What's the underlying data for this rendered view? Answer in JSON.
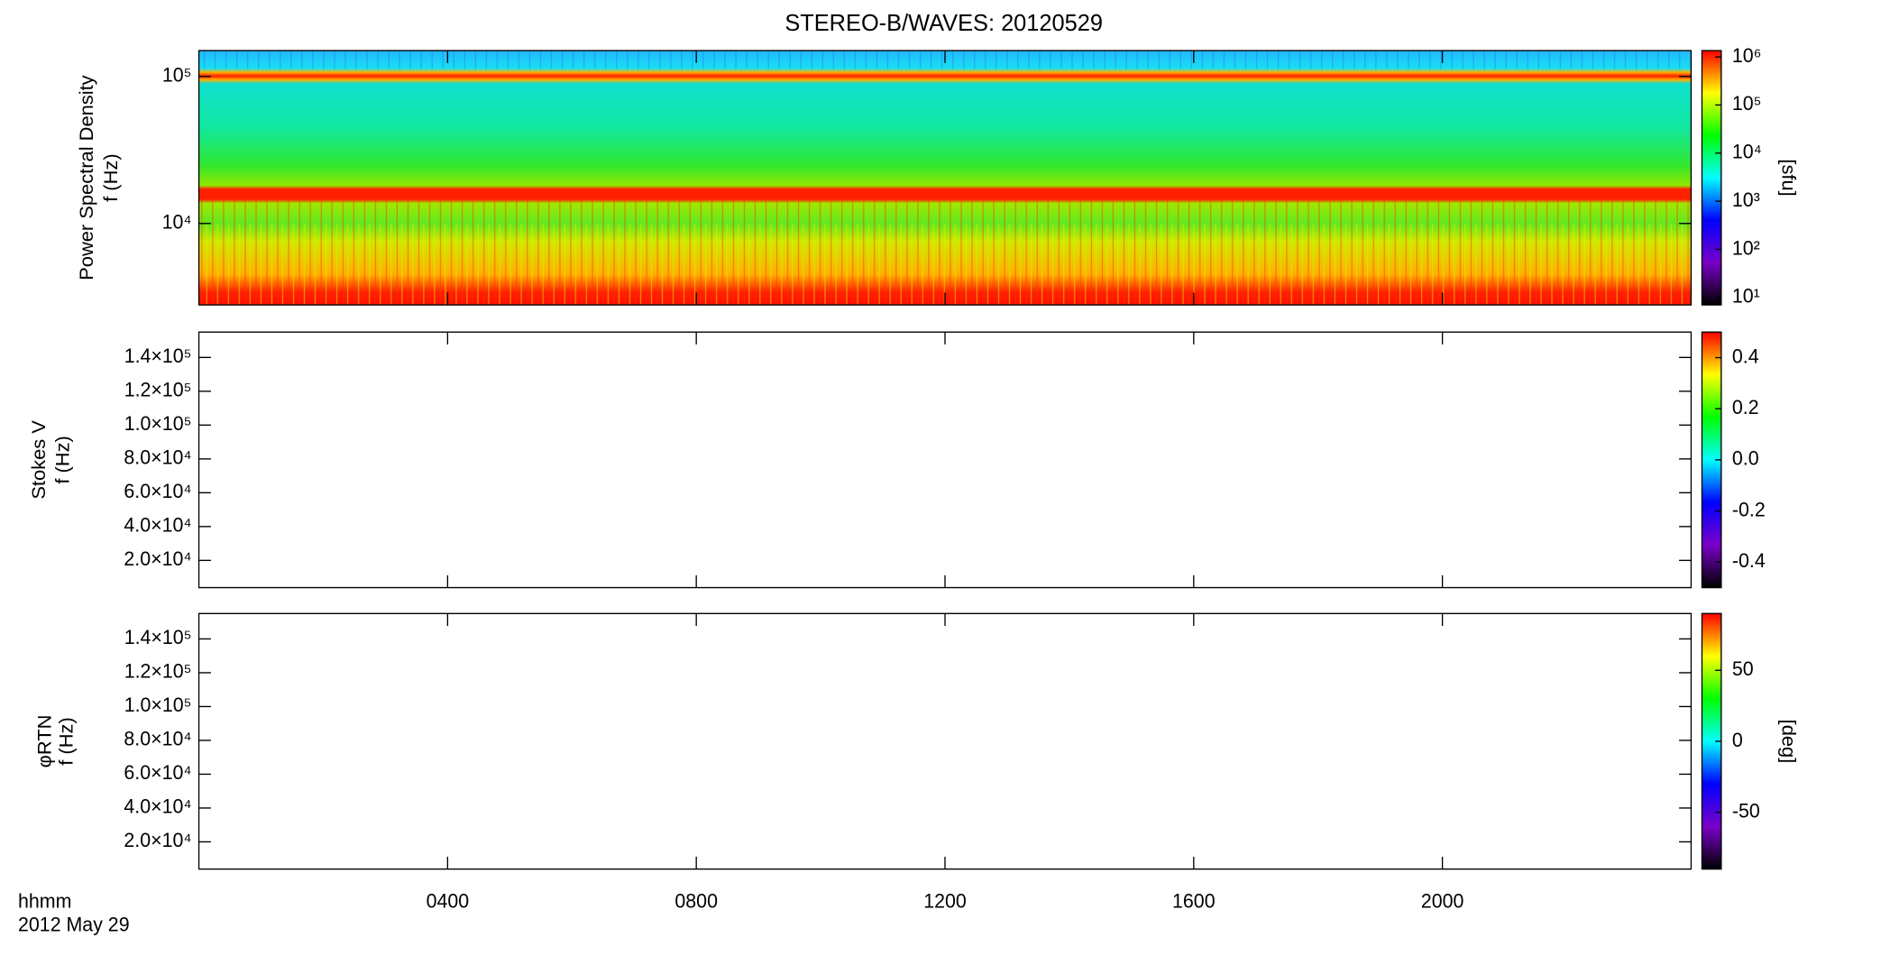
{
  "chart_data": [
    {
      "type": "spectrogram",
      "title": "STEREO-B/WAVES: 20120529",
      "ylabel": [
        "Power Spectral Density",
        "f (Hz)"
      ],
      "ylog": true,
      "ylim": [
        2790,
        150000
      ],
      "yticks": [
        {
          "value": 10000,
          "label": "10⁴"
        },
        {
          "value": 100000,
          "label": "10⁵"
        }
      ],
      "colorbar": {
        "log": true,
        "lim": [
          7,
          1350000
        ],
        "label": "[sfu]",
        "ticks": [
          {
            "value": 10,
            "label": "10¹"
          },
          {
            "value": 100,
            "label": "10²"
          },
          {
            "value": 1000,
            "label": "10³"
          },
          {
            "value": 10000,
            "label": "10⁴"
          },
          {
            "value": 100000,
            "label": "10⁵"
          },
          {
            "value": 1000000,
            "label": "10⁶"
          }
        ]
      }
    },
    {
      "type": "spectrogram",
      "ylabel": [
        "Stokes V",
        "f (Hz)"
      ],
      "ylog": false,
      "ylim": [
        3900,
        155000
      ],
      "yticks": [
        {
          "value": 20000,
          "label": "2.0×10⁴"
        },
        {
          "value": 40000,
          "label": "4.0×10⁴"
        },
        {
          "value": 60000,
          "label": "6.0×10⁴"
        },
        {
          "value": 80000,
          "label": "8.0×10⁴"
        },
        {
          "value": 100000,
          "label": "1.0×10⁵"
        },
        {
          "value": 120000,
          "label": "1.2×10⁵"
        },
        {
          "value": 140000,
          "label": "1.4×10⁵"
        }
      ],
      "colorbar": {
        "log": false,
        "lim": [
          -0.5,
          0.5
        ],
        "ticks": [
          {
            "value": -0.4,
            "label": "-0.4"
          },
          {
            "value": -0.2,
            "label": "-0.2"
          },
          {
            "value": 0,
            "label": "0.0"
          },
          {
            "value": 0.2,
            "label": "0.2"
          },
          {
            "value": 0.4,
            "label": "0.4"
          }
        ]
      }
    },
    {
      "type": "spectrogram",
      "ylabel": [
        "φRTN",
        "f (Hz)"
      ],
      "ylog": false,
      "ylim": [
        3900,
        155000
      ],
      "yticks": [
        {
          "value": 20000,
          "label": "2.0×10⁴"
        },
        {
          "value": 40000,
          "label": "4.0×10⁴"
        },
        {
          "value": 60000,
          "label": "6.0×10⁴"
        },
        {
          "value": 80000,
          "label": "8.0×10⁴"
        },
        {
          "value": 100000,
          "label": "1.0×10⁵"
        },
        {
          "value": 120000,
          "label": "1.2×10⁵"
        },
        {
          "value": 140000,
          "label": "1.4×10⁵"
        }
      ],
      "colorbar": {
        "log": false,
        "lim": [
          -90,
          90
        ],
        "label": "[deg]",
        "ticks": [
          -50,
          0,
          50
        ]
      },
      "xlabel": [
        "hhmm",
        "2012 May 29"
      ],
      "xlim": [
        0,
        24
      ],
      "xticks": [
        {
          "value": 4,
          "label": "0400"
        },
        {
          "value": 8,
          "label": "0800"
        },
        {
          "value": 12,
          "label": "1200"
        },
        {
          "value": 16,
          "label": "1600"
        },
        {
          "value": 20,
          "label": "2000"
        }
      ],
      "colormap": [
        "#000000",
        "#7a00c8",
        "#0000ff",
        "#00ffff",
        "#00ff00",
        "#ffff00",
        "#ff0000"
      ]
    }
  ]
}
